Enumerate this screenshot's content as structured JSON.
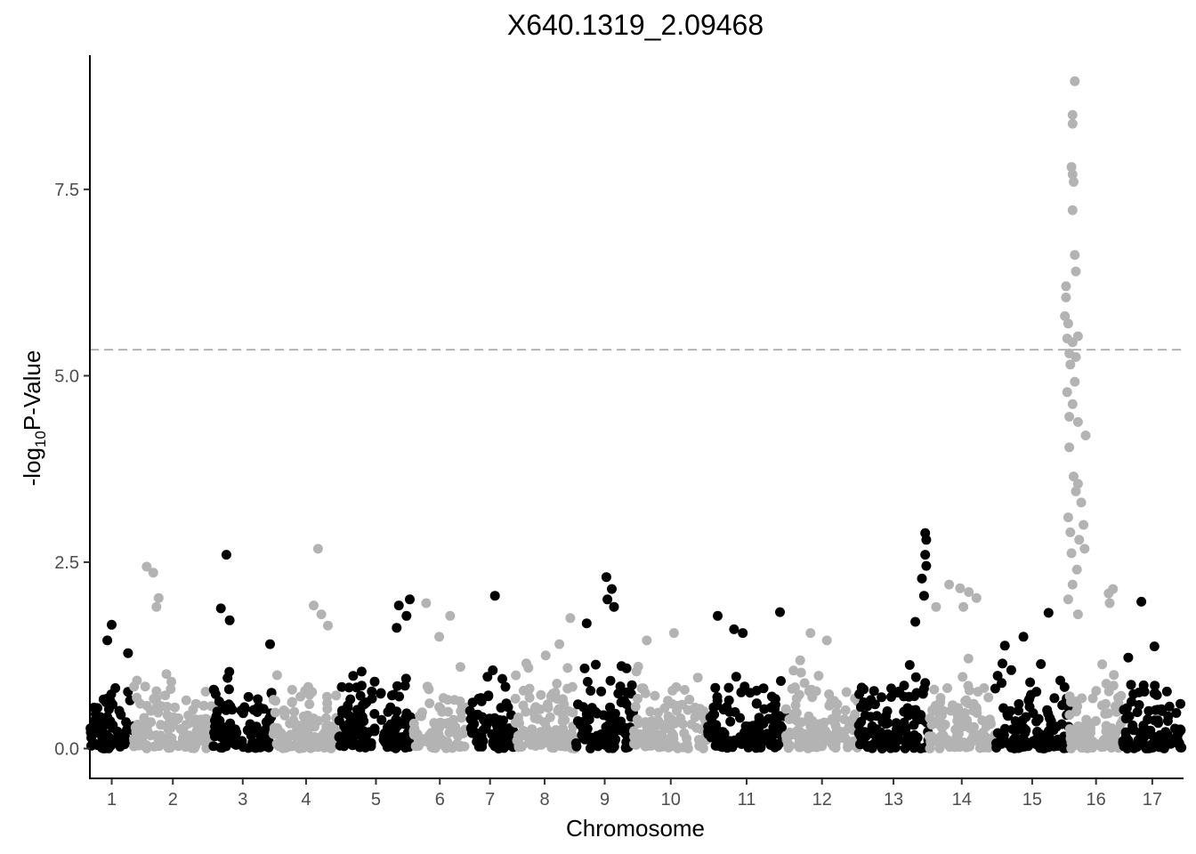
{
  "chart_data": {
    "type": "scatter",
    "title": "X640.1319_2.09468",
    "xlabel": "Chromosome",
    "ylabel_prefix": "-log",
    "ylabel_sub": "10",
    "ylabel_suffix": "P-Value",
    "ylim": [
      -0.4,
      9.3
    ],
    "yticks": [
      "0.0",
      "2.5",
      "5.0",
      "7.5"
    ],
    "ytick_values": [
      0,
      2.5,
      5.0,
      7.5
    ],
    "threshold": 5.35,
    "threshold_color": "#b3b3b3",
    "colors": {
      "odd": "#000000",
      "even": "#b3b3b3"
    },
    "xticks": [
      "1",
      "2",
      "3",
      "4",
      "5",
      "6",
      "7",
      "8",
      "9",
      "10",
      "11",
      "12",
      "13",
      "14",
      "15",
      "16",
      "17"
    ],
    "chromosomes": [
      {
        "name": "1",
        "start": 0.0,
        "end": 0.04,
        "color": "odd",
        "peaks": [
          [
            0.02,
            1.66
          ],
          [
            0.016,
            1.45
          ],
          [
            0.035,
            1.28
          ]
        ]
      },
      {
        "name": "2",
        "start": 0.04,
        "end": 0.112,
        "color": "even",
        "peaks": [
          [
            0.052,
            2.44
          ],
          [
            0.058,
            2.36
          ],
          [
            0.063,
            2.02
          ],
          [
            0.061,
            1.9
          ]
        ]
      },
      {
        "name": "3",
        "start": 0.112,
        "end": 0.168,
        "color": "odd",
        "peaks": [
          [
            0.125,
            2.6
          ],
          [
            0.12,
            1.88
          ],
          [
            0.128,
            1.72
          ],
          [
            0.165,
            1.4
          ]
        ]
      },
      {
        "name": "4",
        "start": 0.168,
        "end": 0.228,
        "color": "even",
        "peaks": [
          [
            0.209,
            2.68
          ],
          [
            0.205,
            1.92
          ],
          [
            0.212,
            1.8
          ],
          [
            0.218,
            1.65
          ]
        ]
      },
      {
        "name": "5",
        "start": 0.228,
        "end": 0.296,
        "color": "odd",
        "peaks": [
          [
            0.293,
            2.0
          ],
          [
            0.283,
            1.92
          ],
          [
            0.29,
            1.78
          ],
          [
            0.281,
            1.62
          ]
        ]
      },
      {
        "name": "6",
        "start": 0.296,
        "end": 0.345,
        "color": "even",
        "peaks": [
          [
            0.308,
            1.95
          ],
          [
            0.33,
            1.78
          ],
          [
            0.32,
            1.5
          ]
        ]
      },
      {
        "name": "7",
        "start": 0.345,
        "end": 0.388,
        "color": "odd",
        "peaks": [
          [
            0.371,
            2.05
          ],
          [
            0.369,
            1.05
          ]
        ]
      },
      {
        "name": "8",
        "start": 0.388,
        "end": 0.445,
        "color": "even",
        "peaks": [
          [
            0.44,
            1.75
          ],
          [
            0.43,
            1.4
          ]
        ]
      },
      {
        "name": "9",
        "start": 0.445,
        "end": 0.498,
        "color": "odd",
        "peaks": [
          [
            0.473,
            2.3
          ],
          [
            0.478,
            2.14
          ],
          [
            0.474,
            2.0
          ],
          [
            0.48,
            1.9
          ],
          [
            0.455,
            1.68
          ]
        ]
      },
      {
        "name": "10",
        "start": 0.498,
        "end": 0.566,
        "color": "even",
        "peaks": [
          [
            0.535,
            1.55
          ],
          [
            0.51,
            1.45
          ]
        ]
      },
      {
        "name": "11",
        "start": 0.566,
        "end": 0.637,
        "color": "odd",
        "peaks": [
          [
            0.632,
            1.83
          ],
          [
            0.575,
            1.78
          ],
          [
            0.59,
            1.6
          ],
          [
            0.598,
            1.55
          ]
        ]
      },
      {
        "name": "12",
        "start": 0.637,
        "end": 0.704,
        "color": "even",
        "peaks": [
          [
            0.66,
            1.55
          ],
          [
            0.675,
            1.45
          ]
        ]
      },
      {
        "name": "13",
        "start": 0.704,
        "end": 0.768,
        "color": "odd",
        "peaks": [
          [
            0.765,
            2.89
          ],
          [
            0.766,
            2.8
          ],
          [
            0.765,
            2.6
          ],
          [
            0.766,
            2.45
          ],
          [
            0.762,
            2.28
          ],
          [
            0.764,
            2.05
          ],
          [
            0.756,
            1.7
          ]
        ]
      },
      {
        "name": "14",
        "start": 0.768,
        "end": 0.829,
        "color": "even",
        "peaks": [
          [
            0.787,
            2.2
          ],
          [
            0.797,
            2.15
          ],
          [
            0.805,
            2.1
          ],
          [
            0.812,
            2.02
          ],
          [
            0.8,
            1.9
          ],
          [
            0.775,
            1.9
          ]
        ]
      },
      {
        "name": "15",
        "start": 0.829,
        "end": 0.897,
        "color": "odd",
        "peaks": [
          [
            0.878,
            1.82
          ],
          [
            0.855,
            1.5
          ],
          [
            0.838,
            1.38
          ]
        ]
      },
      {
        "name": "16",
        "start": 0.897,
        "end": 0.946,
        "color": "even",
        "peaks": [
          [
            0.902,
            8.95
          ],
          [
            0.9,
            8.5
          ],
          [
            0.9,
            8.38
          ],
          [
            0.899,
            7.8
          ],
          [
            0.9,
            7.7
          ],
          [
            0.901,
            7.6
          ],
          [
            0.9,
            7.22
          ],
          [
            0.902,
            6.62
          ],
          [
            0.903,
            6.4
          ],
          [
            0.894,
            6.2
          ],
          [
            0.894,
            6.05
          ],
          [
            0.893,
            5.8
          ],
          [
            0.896,
            5.7
          ],
          [
            0.895,
            5.5
          ],
          [
            0.905,
            5.53
          ],
          [
            0.9,
            5.45
          ],
          [
            0.897,
            5.3
          ],
          [
            0.903,
            5.25
          ],
          [
            0.898,
            5.15
          ],
          [
            0.902,
            4.92
          ],
          [
            0.895,
            4.78
          ],
          [
            0.9,
            4.62
          ],
          [
            0.897,
            4.45
          ],
          [
            0.905,
            4.38
          ],
          [
            0.912,
            4.2
          ],
          [
            0.897,
            4.04
          ],
          [
            0.901,
            3.65
          ],
          [
            0.905,
            3.55
          ],
          [
            0.903,
            3.45
          ],
          [
            0.908,
            3.3
          ],
          [
            0.896,
            3.1
          ],
          [
            0.91,
            3.0
          ],
          [
            0.898,
            2.9
          ],
          [
            0.906,
            2.8
          ],
          [
            0.899,
            2.62
          ],
          [
            0.911,
            2.68
          ],
          [
            0.904,
            2.4
          ],
          [
            0.9,
            2.2
          ],
          [
            0.896,
            2.0
          ],
          [
            0.905,
            1.8
          ],
          [
            0.937,
            2.14
          ],
          [
            0.933,
            2.08
          ],
          [
            0.934,
            1.95
          ]
        ]
      },
      {
        "name": "17",
        "start": 0.946,
        "end": 1.0,
        "color": "odd",
        "peaks": [
          [
            0.963,
            1.97
          ],
          [
            0.975,
            1.37
          ],
          [
            0.951,
            1.22
          ]
        ]
      }
    ]
  }
}
